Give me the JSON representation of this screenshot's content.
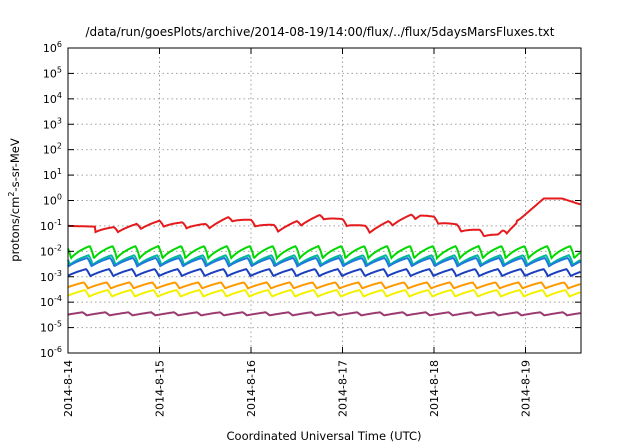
{
  "chart_data": {
    "type": "line",
    "title": "/data/run/goesPlots/archive/2014-08-19/14:00/flux/../flux/5daysMarsFluxes.txt",
    "xlabel": "Coordinated Universal Time (UTC)",
    "ylabel_parts": [
      "protons/cm",
      "2",
      "-s-sr-MeV"
    ],
    "y_scale": "log",
    "ylim": [
      1e-06,
      1000000.0
    ],
    "y_ticks": [
      {
        "value": 1e-06,
        "base": "10",
        "exp": "-6"
      },
      {
        "value": 1e-05,
        "base": "10",
        "exp": "-5"
      },
      {
        "value": 0.0001,
        "base": "10",
        "exp": "-4"
      },
      {
        "value": 0.001,
        "base": "10",
        "exp": "-3"
      },
      {
        "value": 0.01,
        "base": "10",
        "exp": "-2"
      },
      {
        "value": 0.1,
        "base": "10",
        "exp": "-1"
      },
      {
        "value": 1,
        "base": "10",
        "exp": "0"
      },
      {
        "value": 10,
        "base": "10",
        "exp": "1"
      },
      {
        "value": 100,
        "base": "10",
        "exp": "2"
      },
      {
        "value": 1000,
        "base": "10",
        "exp": "3"
      },
      {
        "value": 10000,
        "base": "10",
        "exp": "4"
      },
      {
        "value": 100000,
        "base": "10",
        "exp": "5"
      },
      {
        "value": 1000000,
        "base": "10",
        "exp": "6"
      }
    ],
    "x_range_days": [
      "2014-08-14",
      "2014-08-19T14:00"
    ],
    "x_ticks": [
      "2014-8-14",
      "2014-8-15",
      "2014-8-16",
      "2014-8-17",
      "2014-8-18",
      "2014-8-19"
    ],
    "grid": true,
    "series": [
      {
        "color": "#e41a1c",
        "base_curve": [
          [
            0,
            0.1
          ],
          [
            0.5,
            0.09
          ],
          [
            1,
            0.16
          ],
          [
            1.5,
            0.12
          ],
          [
            1.8,
            0.25
          ],
          [
            2.3,
            0.1
          ],
          [
            2.8,
            0.3
          ],
          [
            3.3,
            0.09
          ],
          [
            3.6,
            0.2
          ],
          [
            3.85,
            0.35
          ],
          [
            4.3,
            0.1
          ],
          [
            4.7,
            0.05
          ],
          [
            4.95,
            0.2
          ],
          [
            5.2,
            1.2
          ],
          [
            5.4,
            1.2
          ],
          [
            5.6,
            0.7
          ],
          [
            6.1,
            0.06
          ],
          [
            6.35,
            0.2
          ],
          [
            6.6,
            1.2
          ],
          [
            6.75,
            1.1
          ],
          [
            6.95,
            0.5
          ],
          [
            7.2,
            0.15
          ],
          [
            7.6,
            0.09
          ],
          [
            7.9,
            0.1
          ],
          [
            8.1,
            0.14
          ],
          [
            8.2,
            0.12
          ]
        ],
        "teeth": [
          [
            0,
            0.45
          ],
          [
            4.65,
            0.55
          ],
          [
            6.15,
            0.55
          ],
          [
            7.6,
            0.5
          ]
        ]
      },
      {
        "color": "#00d800",
        "base_curve": [
          [
            0,
            0.016
          ],
          [
            8.2,
            0.016
          ]
        ],
        "teeth": [
          [
            0,
            0.45
          ]
        ],
        "sag": 0.5
      },
      {
        "color": "#00b89a",
        "base_curve": [
          [
            0,
            0.007
          ],
          [
            8.2,
            0.007
          ]
        ],
        "teeth": [
          [
            0,
            0.45
          ]
        ],
        "sag": 0.35
      },
      {
        "color": "#1f78e0",
        "base_curve": [
          [
            0,
            0.0055
          ],
          [
            8.2,
            0.0055
          ]
        ],
        "teeth": [
          [
            0,
            0.45
          ]
        ],
        "sag": 0.28
      },
      {
        "color": "#1a3fbf",
        "base_curve": [
          [
            0,
            0.002
          ],
          [
            8.2,
            0.002
          ]
        ],
        "teeth": [
          [
            0,
            0.45
          ]
        ],
        "sag": 0.22
      },
      {
        "color": "#f2f200",
        "base_curve": [
          [
            0,
            0.0003
          ],
          [
            8.2,
            0.0003
          ]
        ],
        "teeth": [
          [
            0,
            0.45
          ]
        ],
        "sag": 0.2
      },
      {
        "color": "#ff9900",
        "base_curve": [
          [
            0,
            0.0006
          ],
          [
            8.2,
            0.0006
          ]
        ],
        "teeth": [
          [
            0,
            0.45
          ]
        ],
        "sag": 0.18
      },
      {
        "color": "#9b3a70",
        "base_curve": [
          [
            0,
            4e-05
          ],
          [
            8.2,
            4e-05
          ]
        ],
        "teeth": [
          [
            0,
            0.45
          ]
        ],
        "sag": 0.08
      }
    ]
  }
}
